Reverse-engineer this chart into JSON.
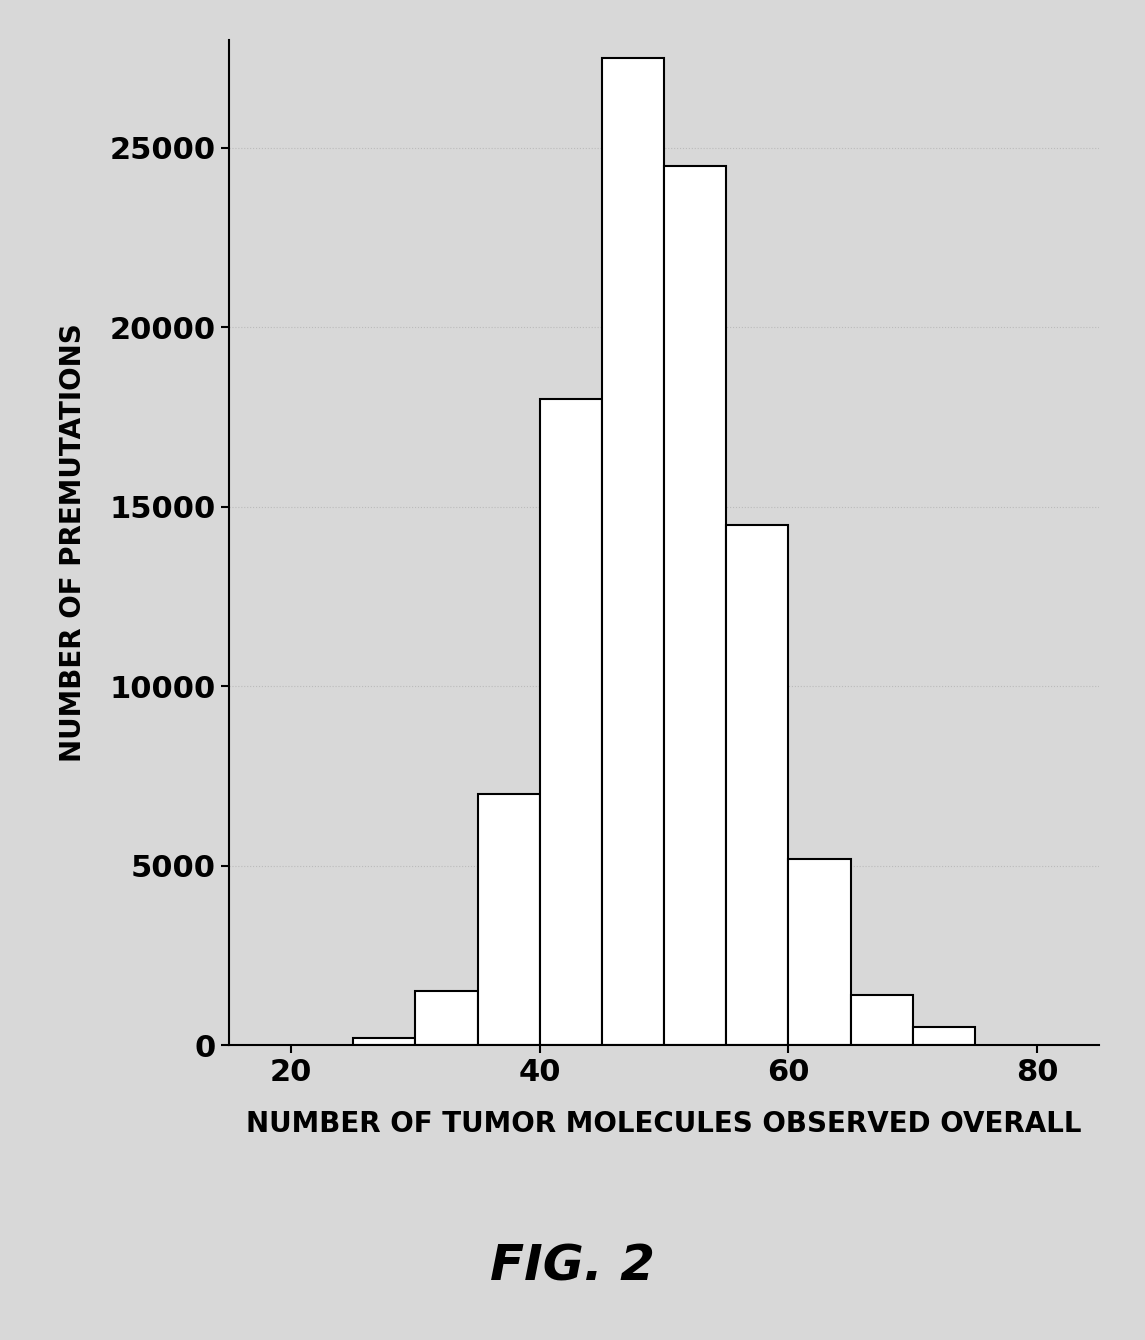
{
  "bar_edges": [
    25,
    30,
    35,
    40,
    45,
    50,
    55,
    60,
    65,
    70,
    75
  ],
  "bar_heights": [
    200,
    1500,
    7000,
    18000,
    27500,
    24500,
    14500,
    5200,
    1400,
    500
  ],
  "bar_color": "#ffffff",
  "bar_edgecolor": "#000000",
  "bar_linewidth": 1.5,
  "xlabel": "NUMBER OF TUMOR MOLECULES OBSERVED OVERALL",
  "ylabel": "NUMBER OF PREMUTATIONS",
  "xlabel_fontsize": 20,
  "ylabel_fontsize": 20,
  "tick_fontsize": 22,
  "ylim": [
    0,
    28000
  ],
  "xlim": [
    15,
    85
  ],
  "xticks": [
    20,
    40,
    60,
    80
  ],
  "yticks": [
    0,
    5000,
    10000,
    15000,
    20000,
    25000
  ],
  "background_color": "#d8d8d8",
  "plot_bg_color": "#d8d8d8",
  "fig_caption": "FIG. 2",
  "fig_caption_fontsize": 36,
  "grid_color": "#bbbbbb",
  "grid_linewidth": 0.8,
  "grid_linestyle": "dotted"
}
